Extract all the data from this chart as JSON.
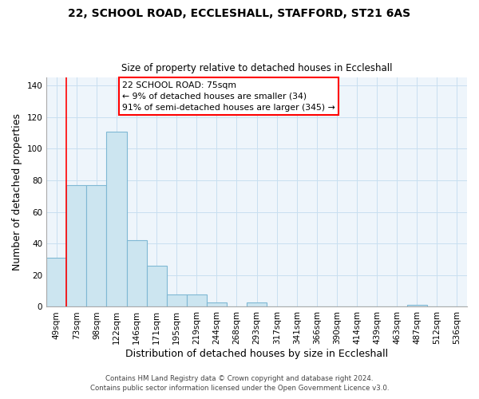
{
  "title_line1": "22, SCHOOL ROAD, ECCLESHALL, STAFFORD, ST21 6AS",
  "title_line2": "Size of property relative to detached houses in Eccleshall",
  "xlabel": "Distribution of detached houses by size in Eccleshall",
  "ylabel": "Number of detached properties",
  "bar_labels": [
    "49sqm",
    "73sqm",
    "98sqm",
    "122sqm",
    "146sqm",
    "171sqm",
    "195sqm",
    "219sqm",
    "244sqm",
    "268sqm",
    "293sqm",
    "317sqm",
    "341sqm",
    "366sqm",
    "390sqm",
    "414sqm",
    "439sqm",
    "463sqm",
    "487sqm",
    "512sqm",
    "536sqm"
  ],
  "bar_heights": [
    31,
    77,
    77,
    111,
    42,
    26,
    8,
    8,
    3,
    0,
    3,
    0,
    0,
    0,
    0,
    0,
    0,
    0,
    1,
    0,
    0
  ],
  "bar_fill_color": "#cce5f0",
  "bar_edge_color": "#7fb8d4",
  "ylim": [
    0,
    145
  ],
  "yticks": [
    0,
    20,
    40,
    60,
    80,
    100,
    120,
    140
  ],
  "red_line_x": 0.5,
  "annotation_title": "22 SCHOOL ROAD: 75sqm",
  "annotation_line1": "← 9% of detached houses are smaller (34)",
  "annotation_line2": "91% of semi-detached houses are larger (345) →",
  "footer_line1": "Contains HM Land Registry data © Crown copyright and database right 2024.",
  "footer_line2": "Contains public sector information licensed under the Open Government Licence v3.0.",
  "background_color": "#ffffff",
  "grid_color": "#c8dff0"
}
